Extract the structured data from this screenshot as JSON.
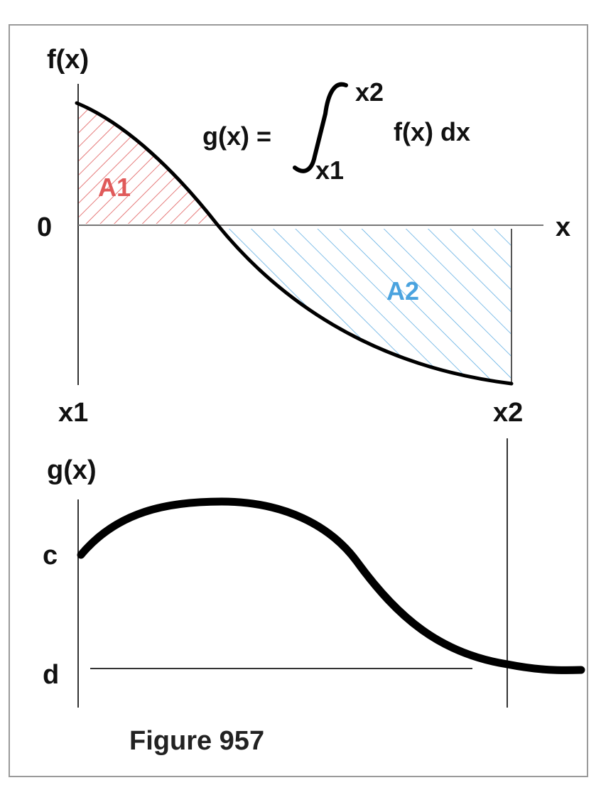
{
  "top_plot": {
    "y_axis_label": "f(x)",
    "x_axis_label": "x",
    "zero_label": "0",
    "x_start_label": "x1",
    "x_end_label": "x2",
    "formula": {
      "lhs": "g(x) =",
      "upper_limit": "x2",
      "lower_limit": "x1",
      "integrand": "f(x) dx"
    },
    "area1": {
      "label": "A1",
      "color": "#e05a5a"
    },
    "area2": {
      "label": "A2",
      "color": "#4aa3df"
    }
  },
  "bottom_plot": {
    "y_axis_label": "g(x)",
    "level_c_label": "c",
    "level_d_label": "d"
  },
  "caption": "Figure 957"
}
